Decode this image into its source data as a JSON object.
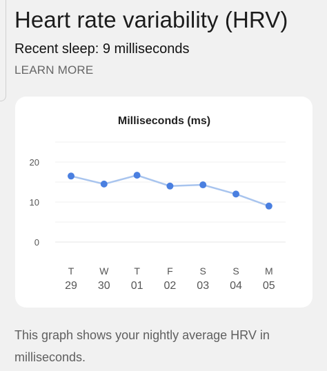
{
  "header": {
    "title": "Heart rate variability (HRV)",
    "recent_sleep": "Recent sleep: 9 milliseconds",
    "learn_more": "LEARN MORE"
  },
  "chart_data": {
    "type": "line",
    "title": "Milliseconds (ms)",
    "x": [
      {
        "day": "T",
        "date": "29"
      },
      {
        "day": "W",
        "date": "30"
      },
      {
        "day": "T",
        "date": "01"
      },
      {
        "day": "F",
        "date": "02"
      },
      {
        "day": "S",
        "date": "03"
      },
      {
        "day": "S",
        "date": "04"
      },
      {
        "day": "M",
        "date": "05"
      }
    ],
    "values": [
      16.5,
      14.5,
      16.7,
      14.0,
      14.3,
      12.0,
      9.0
    ],
    "yticks": [
      0,
      10,
      20
    ],
    "ylim": [
      0,
      25
    ],
    "grid": true,
    "line_color": "#a8c4ee",
    "point_color": "#4a7fe0"
  },
  "footer": {
    "description": "This graph shows your nightly average HRV in milliseconds."
  }
}
